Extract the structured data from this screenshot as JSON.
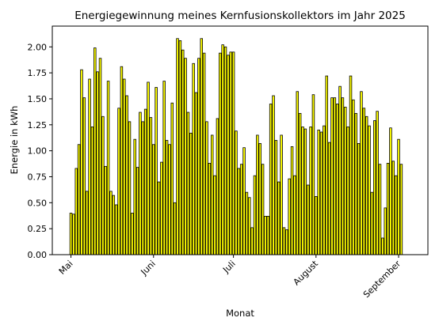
{
  "chart_data": {
    "type": "bar",
    "title": "Energiegewinnung meines Kernfusionskollektors im Jahr 2025",
    "xlabel": "Monat",
    "ylabel": "Energie in kWh",
    "x_tick_labels": [
      "Mai",
      "Juni",
      "Juli",
      "August",
      "September"
    ],
    "x_tick_dates": [
      "2025-05-01",
      "2025-06-01",
      "2025-07-01",
      "2025-08-01",
      "2025-09-01"
    ],
    "y_ticks": [
      0.0,
      0.25,
      0.5,
      0.75,
      1.0,
      1.25,
      1.5,
      1.75,
      2.0
    ],
    "y_tick_labels": [
      "0.00",
      "0.25",
      "0.50",
      "0.75",
      "1.00",
      "1.25",
      "1.50",
      "1.75",
      "2.00"
    ],
    "ylim": [
      0,
      2.2
    ],
    "xlim": [
      "2025-04-24",
      "2025-09-12"
    ],
    "grid": false,
    "bar_color": "#ffff00",
    "edge_color": "#000000",
    "x_start_date": "2025-05-01",
    "values": [
      0.4,
      0.39,
      0.83,
      1.06,
      1.78,
      1.51,
      0.61,
      1.69,
      1.23,
      1.99,
      1.76,
      1.89,
      1.33,
      0.85,
      1.67,
      0.61,
      0.57,
      0.48,
      1.41,
      1.81,
      1.69,
      1.53,
      1.28,
      0.4,
      1.11,
      0.84,
      1.37,
      1.28,
      1.4,
      1.66,
      1.32,
      1.06,
      1.61,
      0.7,
      0.89,
      1.67,
      1.1,
      1.06,
      1.46,
      0.5,
      2.08,
      2.06,
      1.97,
      1.89,
      1.37,
      1.17,
      1.84,
      1.56,
      1.89,
      2.08,
      1.94,
      1.28,
      0.88,
      1.15,
      0.76,
      1.31,
      1.94,
      2.02,
      2.0,
      1.92,
      1.95,
      1.95,
      1.19,
      0.83,
      0.87,
      1.03,
      0.6,
      0.55,
      0.26,
      0.76,
      1.15,
      1.07,
      0.87,
      0.37,
      0.37,
      1.45,
      1.53,
      1.1,
      0.7,
      1.15,
      0.26,
      0.24,
      0.73,
      1.04,
      0.76,
      1.57,
      1.36,
      1.23,
      1.21,
      0.67,
      1.23,
      1.54,
      0.56,
      1.2,
      1.18,
      1.24,
      1.72,
      1.08,
      1.51,
      1.51,
      1.45,
      1.62,
      1.51,
      1.42,
      1.23,
      1.72,
      1.49,
      1.36,
      1.07,
      1.57,
      1.41,
      1.33,
      1.24,
      0.6,
      1.29,
      1.38,
      0.87,
      0.16,
      0.45,
      0.88,
      1.22,
      0.9,
      0.76,
      1.11,
      0.87
    ]
  }
}
